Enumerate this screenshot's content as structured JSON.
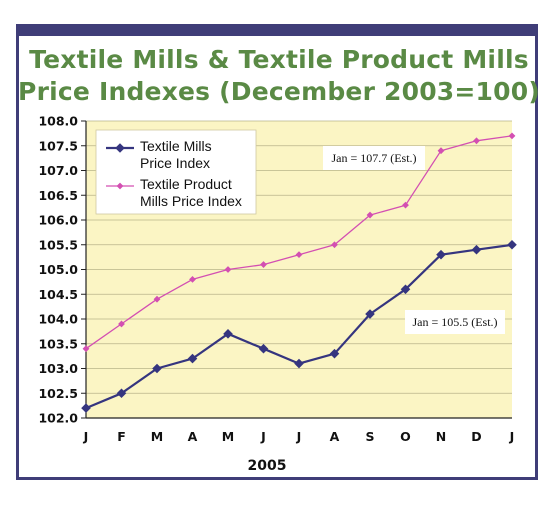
{
  "title": {
    "line1": "Textile Mills & Textile Product Mills",
    "line2": "Price Indexes (December 2003=100)"
  },
  "colors": {
    "frame": "#3f3d78",
    "title": "#5a8a45",
    "plot_background": "#fbf5c4",
    "series_mills": "#35357f",
    "series_product": "#d34fb2"
  },
  "chart_data": {
    "type": "line",
    "xlabel": "2005",
    "ylabel": "",
    "ylim": [
      102.0,
      108.0
    ],
    "y_ticks": [
      "102.0",
      "102.5",
      "103.0",
      "103.5",
      "104.0",
      "104.5",
      "105.0",
      "105.5",
      "106.0",
      "106.5",
      "107.0",
      "107.5",
      "108.0"
    ],
    "categories": [
      "J",
      "F",
      "M",
      "A",
      "M",
      "J",
      "J",
      "A",
      "S",
      "O",
      "N",
      "D",
      "J"
    ],
    "grid": "horizontal",
    "legend_position": "top-left",
    "series": [
      {
        "name": "Textile Mills Price Index",
        "legend_lines": [
          "Textile Mills",
          "Price Index"
        ],
        "values": [
          102.2,
          102.5,
          103.0,
          103.2,
          103.7,
          103.4,
          103.1,
          103.3,
          104.1,
          104.6,
          105.3,
          105.4,
          105.5
        ]
      },
      {
        "name": "Textile Product Mills Price Index",
        "legend_lines": [
          "Textile Product",
          "Mills Price Index"
        ],
        "values": [
          103.4,
          103.9,
          104.4,
          104.8,
          105.0,
          105.1,
          105.3,
          105.5,
          106.1,
          106.3,
          107.4,
          107.6,
          107.7
        ]
      }
    ],
    "annotations": [
      {
        "text": "Jan = 107.7 (Est.)",
        "series": 1
      },
      {
        "text": "Jan = 105.5 (Est.)",
        "series": 0
      }
    ]
  }
}
